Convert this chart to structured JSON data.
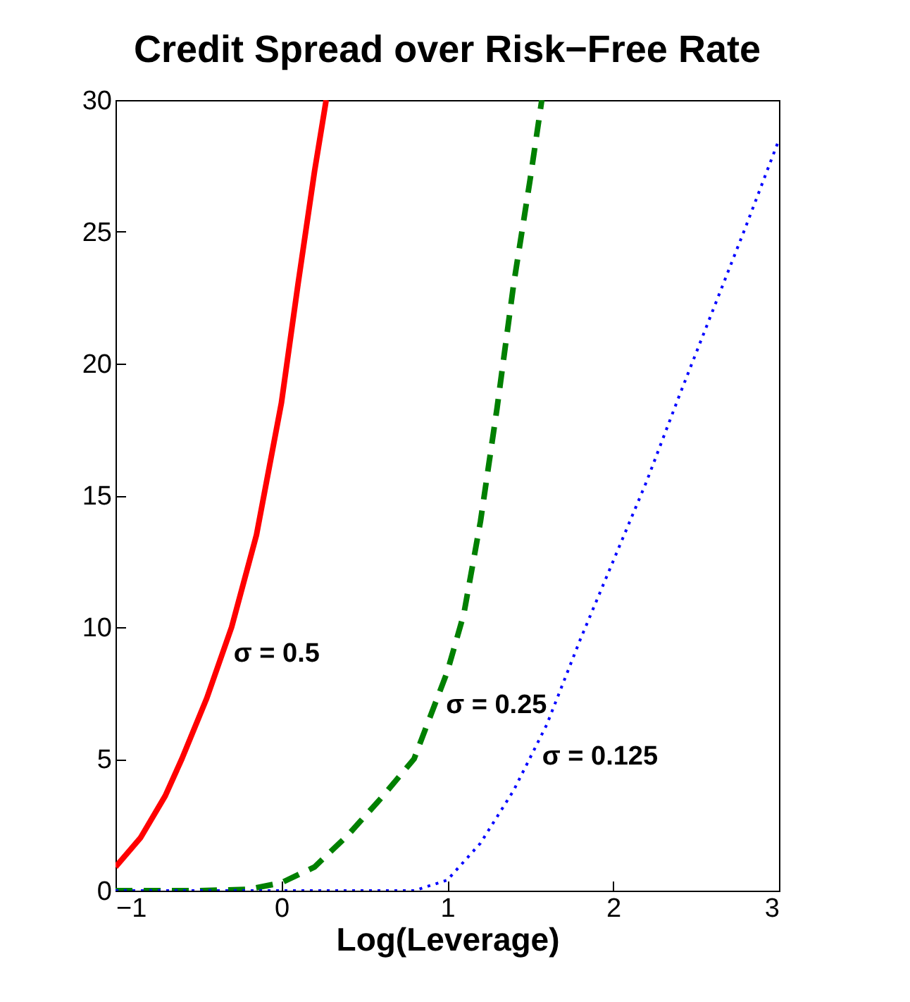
{
  "chart_data": {
    "type": "line",
    "title": "Credit Spread over Risk−Free Rate",
    "xlabel": "Log(Leverage)",
    "xlim": [
      -1,
      3
    ],
    "xticks": [
      {
        "value": -1,
        "label": "−1"
      },
      0,
      1,
      2,
      3
    ],
    "ylim": [
      0,
      30
    ],
    "yticks": [
      0,
      5,
      10,
      15,
      20,
      25,
      30
    ],
    "grid": false,
    "series": [
      {
        "name": "σ = 0.5",
        "color": "#ff0000",
        "line_style": "solid",
        "x": [
          -1,
          -0.85,
          -0.7,
          -0.6,
          -0.45,
          -0.3,
          -0.15,
          0,
          0.1,
          0.2,
          0.27
        ],
        "values": [
          0.9,
          2,
          3.6,
          5,
          7.3,
          10,
          13.5,
          18.5,
          23,
          27.3,
          30
        ]
      },
      {
        "name": "σ = 0.25",
        "color": "#008000",
        "line_style": "dashed",
        "x": [
          -1,
          -0.5,
          -0.2,
          0,
          0.2,
          0.4,
          0.6,
          0.8,
          1.0,
          1.1,
          1.2,
          1.3,
          1.4,
          1.5,
          1.57
        ],
        "values": [
          0,
          0,
          0.05,
          0.3,
          0.9,
          2.1,
          3.5,
          5,
          8.3,
          10.5,
          14,
          18.3,
          23,
          27,
          30
        ]
      },
      {
        "name": "σ = 0.125",
        "color": "#0000ff",
        "line_style": "dotted",
        "x": [
          -1,
          0.8,
          1.0,
          1.2,
          1.4,
          1.6,
          1.8,
          2.0,
          2.2,
          2.4,
          2.6,
          2.8,
          3
        ],
        "values": [
          0,
          0,
          0.4,
          1.8,
          3.8,
          6.3,
          9.5,
          12.5,
          15.5,
          18.8,
          22,
          25.2,
          28.5
        ]
      }
    ]
  }
}
